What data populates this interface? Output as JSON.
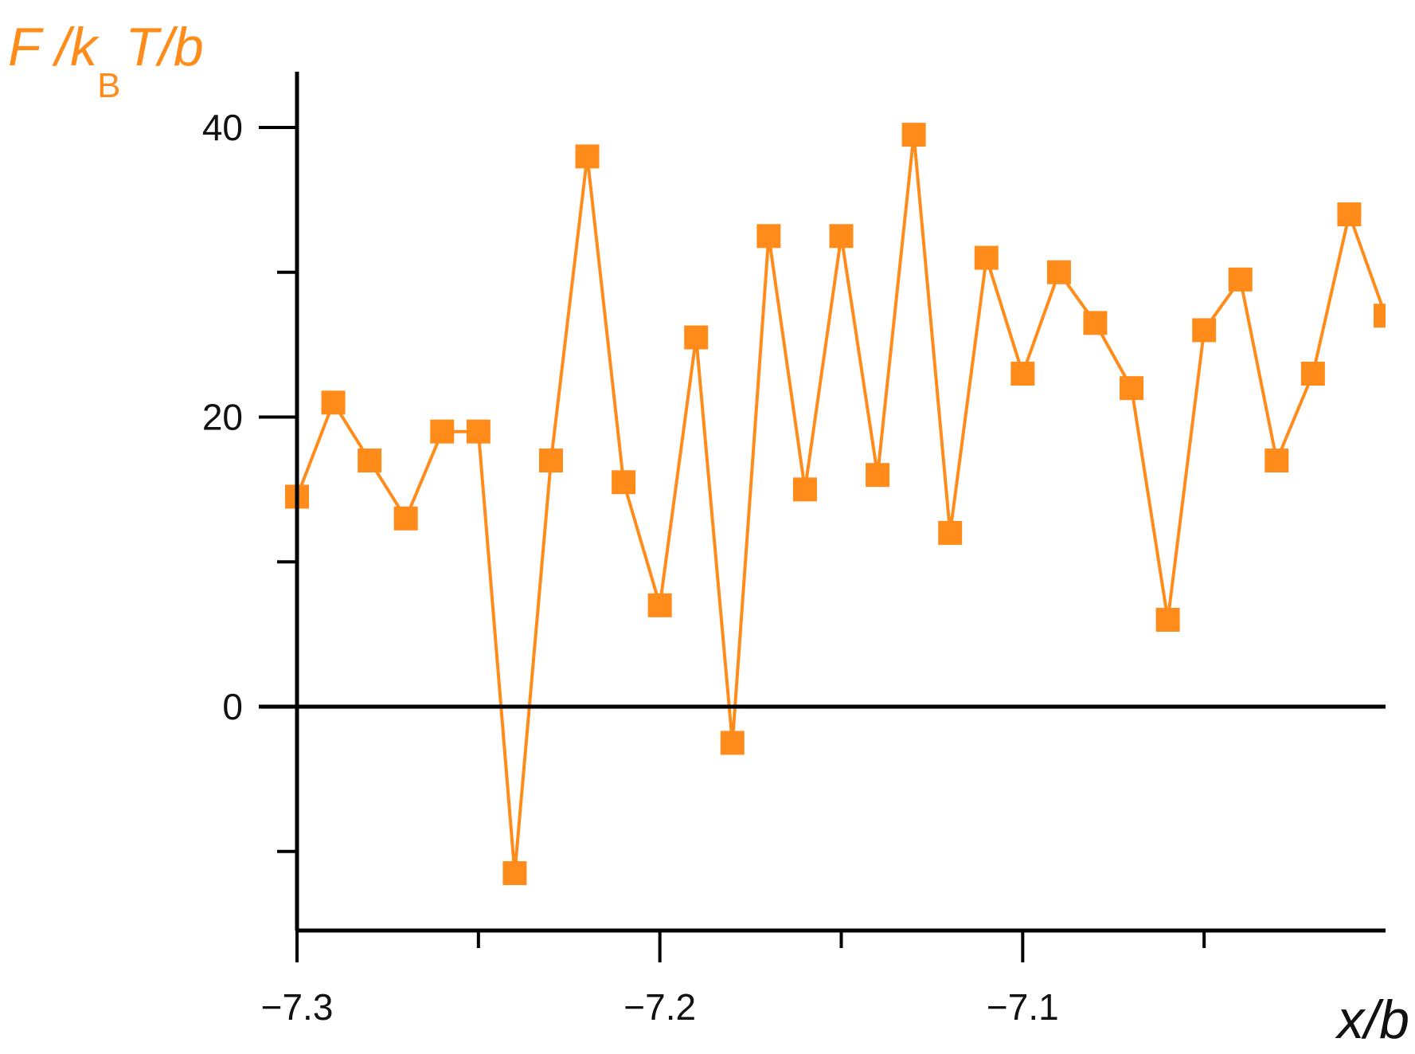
{
  "chart_data": {
    "type": "line",
    "marker": "square",
    "ylabel": {
      "main": "F /k",
      "subscript": "B",
      "tail": "T/b"
    },
    "xlabel": "x/b",
    "xlim": [
      -7.3,
      -7.0
    ],
    "ylim": [
      -15.5,
      40
    ],
    "xticks_major": [
      -7.3,
      -7.2,
      -7.1
    ],
    "xtick_labels": [
      "−7.3",
      "−7.2",
      "−7.1"
    ],
    "xticks_minor": [
      -7.25,
      -7.15,
      -7.05
    ],
    "yticks_major": [
      0,
      20,
      40
    ],
    "ytick_labels": [
      "0",
      "20",
      "40"
    ],
    "yticks_minor": [
      -10,
      10,
      30
    ],
    "zero_line": true,
    "grid": false,
    "colors": {
      "series": "#FF8C1A",
      "axes": "#000000"
    },
    "series": [
      {
        "x": [
          -7.3,
          -7.29,
          -7.28,
          -7.27,
          -7.26,
          -7.25,
          -7.24,
          -7.23,
          -7.22,
          -7.21,
          -7.2,
          -7.19,
          -7.18,
          -7.17,
          -7.16,
          -7.15,
          -7.14,
          -7.13,
          -7.12,
          -7.11,
          -7.1,
          -7.09,
          -7.08,
          -7.07,
          -7.06,
          -7.05,
          -7.04,
          -7.03,
          -7.02,
          -7.01,
          -7.0
        ],
        "y": [
          14.5,
          21,
          17,
          13,
          19,
          19,
          -11.5,
          17,
          38,
          15.5,
          7,
          25.5,
          -2.5,
          32.5,
          15,
          32.5,
          16,
          39.5,
          12,
          31,
          23,
          30,
          26.5,
          22,
          6,
          26,
          29.5,
          17,
          23,
          34,
          27
        ]
      }
    ]
  }
}
